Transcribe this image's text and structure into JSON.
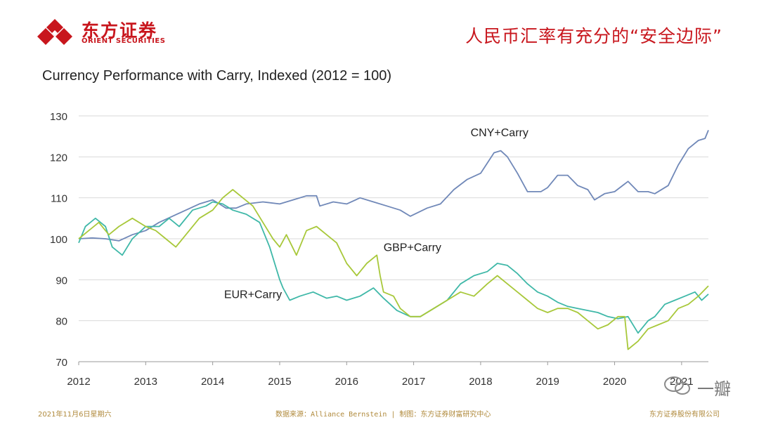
{
  "header": {
    "logo_cn": "东方证券",
    "logo_en": "ORIENT SECURITIES",
    "slide_title": "人民币汇率有充分的“安全边际”"
  },
  "chart_data": {
    "type": "line",
    "title": "Currency Performance with Carry, Indexed (2012 = 100)",
    "xlabel": "",
    "ylabel": "",
    "xlim": [
      2012,
      2021.4
    ],
    "ylim": [
      70,
      130
    ],
    "yticks": [
      70,
      80,
      90,
      100,
      110,
      120,
      130
    ],
    "xticks": [
      2012,
      2013,
      2014,
      2015,
      2016,
      2017,
      2018,
      2019,
      2020,
      2021
    ],
    "grid": true,
    "series": [
      {
        "name": "CNY+Carry",
        "color": "#7088b8",
        "x": [
          2012,
          2012.2,
          2012.4,
          2012.6,
          2012.8,
          2013,
          2013.2,
          2013.4,
          2013.6,
          2013.8,
          2014,
          2014.1,
          2014.2,
          2014.35,
          2014.5,
          2014.75,
          2015,
          2015.2,
          2015.4,
          2015.55,
          2015.6,
          2015.8,
          2016,
          2016.2,
          2016.4,
          2016.6,
          2016.8,
          2016.95,
          2017.2,
          2017.4,
          2017.6,
          2017.8,
          2018,
          2018.2,
          2018.3,
          2018.4,
          2018.55,
          2018.7,
          2018.9,
          2019,
          2019.15,
          2019.3,
          2019.45,
          2019.6,
          2019.7,
          2019.85,
          2020,
          2020.2,
          2020.35,
          2020.5,
          2020.6,
          2020.8,
          2020.95,
          2021.1,
          2021.25,
          2021.35,
          2021.4
        ],
        "values": [
          100,
          100.2,
          100,
          99.5,
          101,
          102,
          104,
          105.5,
          107,
          108.5,
          109.5,
          108.5,
          107.5,
          107.5,
          108.5,
          109,
          108.5,
          109.5,
          110.5,
          110.5,
          108,
          109,
          108.5,
          110,
          109,
          108,
          107,
          105.5,
          107.5,
          108.5,
          112,
          114.5,
          116,
          121,
          121.5,
          120,
          116,
          111.5,
          111.5,
          112.5,
          115.5,
          115.5,
          113,
          112,
          109.5,
          111,
          111.5,
          114,
          111.5,
          111.5,
          111,
          113,
          118,
          122,
          124,
          124.5,
          126.5
        ]
      },
      {
        "name": "EUR+Carry",
        "color": "#3fb8a8",
        "x": [
          2012,
          2012.1,
          2012.25,
          2012.4,
          2012.5,
          2012.65,
          2012.8,
          2013,
          2013.2,
          2013.35,
          2013.5,
          2013.7,
          2013.9,
          2014,
          2014.15,
          2014.3,
          2014.5,
          2014.7,
          2014.85,
          2015,
          2015.05,
          2015.15,
          2015.3,
          2015.5,
          2015.7,
          2015.85,
          2016,
          2016.2,
          2016.4,
          2016.55,
          2016.75,
          2016.95,
          2017.1,
          2017.3,
          2017.5,
          2017.7,
          2017.9,
          2018.1,
          2018.25,
          2018.4,
          2018.55,
          2018.7,
          2018.85,
          2019,
          2019.15,
          2019.3,
          2019.45,
          2019.6,
          2019.75,
          2019.9,
          2020.05,
          2020.2,
          2020.35,
          2020.5,
          2020.6,
          2020.75,
          2020.9,
          2021.05,
          2021.2,
          2021.3,
          2021.4
        ],
        "values": [
          99,
          103,
          105,
          103,
          98,
          96,
          100,
          103,
          103,
          105,
          103,
          107,
          108,
          109,
          108.5,
          107,
          106,
          104,
          98,
          90,
          88,
          85,
          86,
          87,
          85.5,
          86,
          85,
          86,
          88,
          85.5,
          82.5,
          81,
          81,
          83,
          85,
          89,
          91,
          92,
          94,
          93.5,
          91.5,
          89,
          87,
          86,
          84.5,
          83.5,
          83,
          82.5,
          82,
          81,
          80.5,
          81,
          77,
          80,
          81,
          84,
          85,
          86,
          87,
          85,
          86.5
        ]
      },
      {
        "name": "GBP+Carry",
        "color": "#a8c83a",
        "x": [
          2012,
          2012.15,
          2012.3,
          2012.45,
          2012.6,
          2012.8,
          2013,
          2013.15,
          2013.3,
          2013.45,
          2013.6,
          2013.8,
          2014,
          2014.15,
          2014.3,
          2014.45,
          2014.6,
          2014.75,
          2014.9,
          2015,
          2015.1,
          2015.25,
          2015.4,
          2015.55,
          2015.7,
          2015.85,
          2016,
          2016.15,
          2016.3,
          2016.45,
          2016.5,
          2016.55,
          2016.7,
          2016.8,
          2016.95,
          2017.1,
          2017.3,
          2017.5,
          2017.7,
          2017.9,
          2018.1,
          2018.25,
          2018.4,
          2018.55,
          2018.7,
          2018.85,
          2019,
          2019.15,
          2019.3,
          2019.45,
          2019.6,
          2019.75,
          2019.9,
          2020.05,
          2020.15,
          2020.2,
          2020.35,
          2020.5,
          2020.65,
          2020.8,
          2020.95,
          2021.1,
          2021.25,
          2021.4
        ],
        "values": [
          100,
          102,
          104,
          101,
          103,
          105,
          103,
          102,
          100,
          98,
          101,
          105,
          107,
          110,
          112,
          110,
          108,
          104,
          100,
          98,
          101,
          96,
          102,
          103,
          101,
          99,
          94,
          91,
          94,
          96,
          91,
          87,
          86,
          83,
          81,
          81,
          83,
          85,
          87,
          86,
          89,
          91,
          89,
          87,
          85,
          83,
          82,
          83,
          83,
          82,
          80,
          78,
          79,
          81,
          81,
          73,
          75,
          78,
          79,
          80,
          83,
          84,
          86,
          88.5
        ]
      }
    ],
    "annotations": [
      {
        "text": "CNY+Carry",
        "x": 2017.85,
        "y": 125
      },
      {
        "text": "GBP+Carry",
        "x": 2016.55,
        "y": 97
      },
      {
        "text": "EUR+Carry",
        "x": 2014.17,
        "y": 85.5
      }
    ]
  },
  "footer": {
    "date": "2021年11月6日星期六",
    "source": "数据来源：Alliance Bernstein | 制图：东方证券财富研究中心",
    "company": "东方证券股份有限公司"
  },
  "watermark": {
    "text": "一瓣"
  }
}
